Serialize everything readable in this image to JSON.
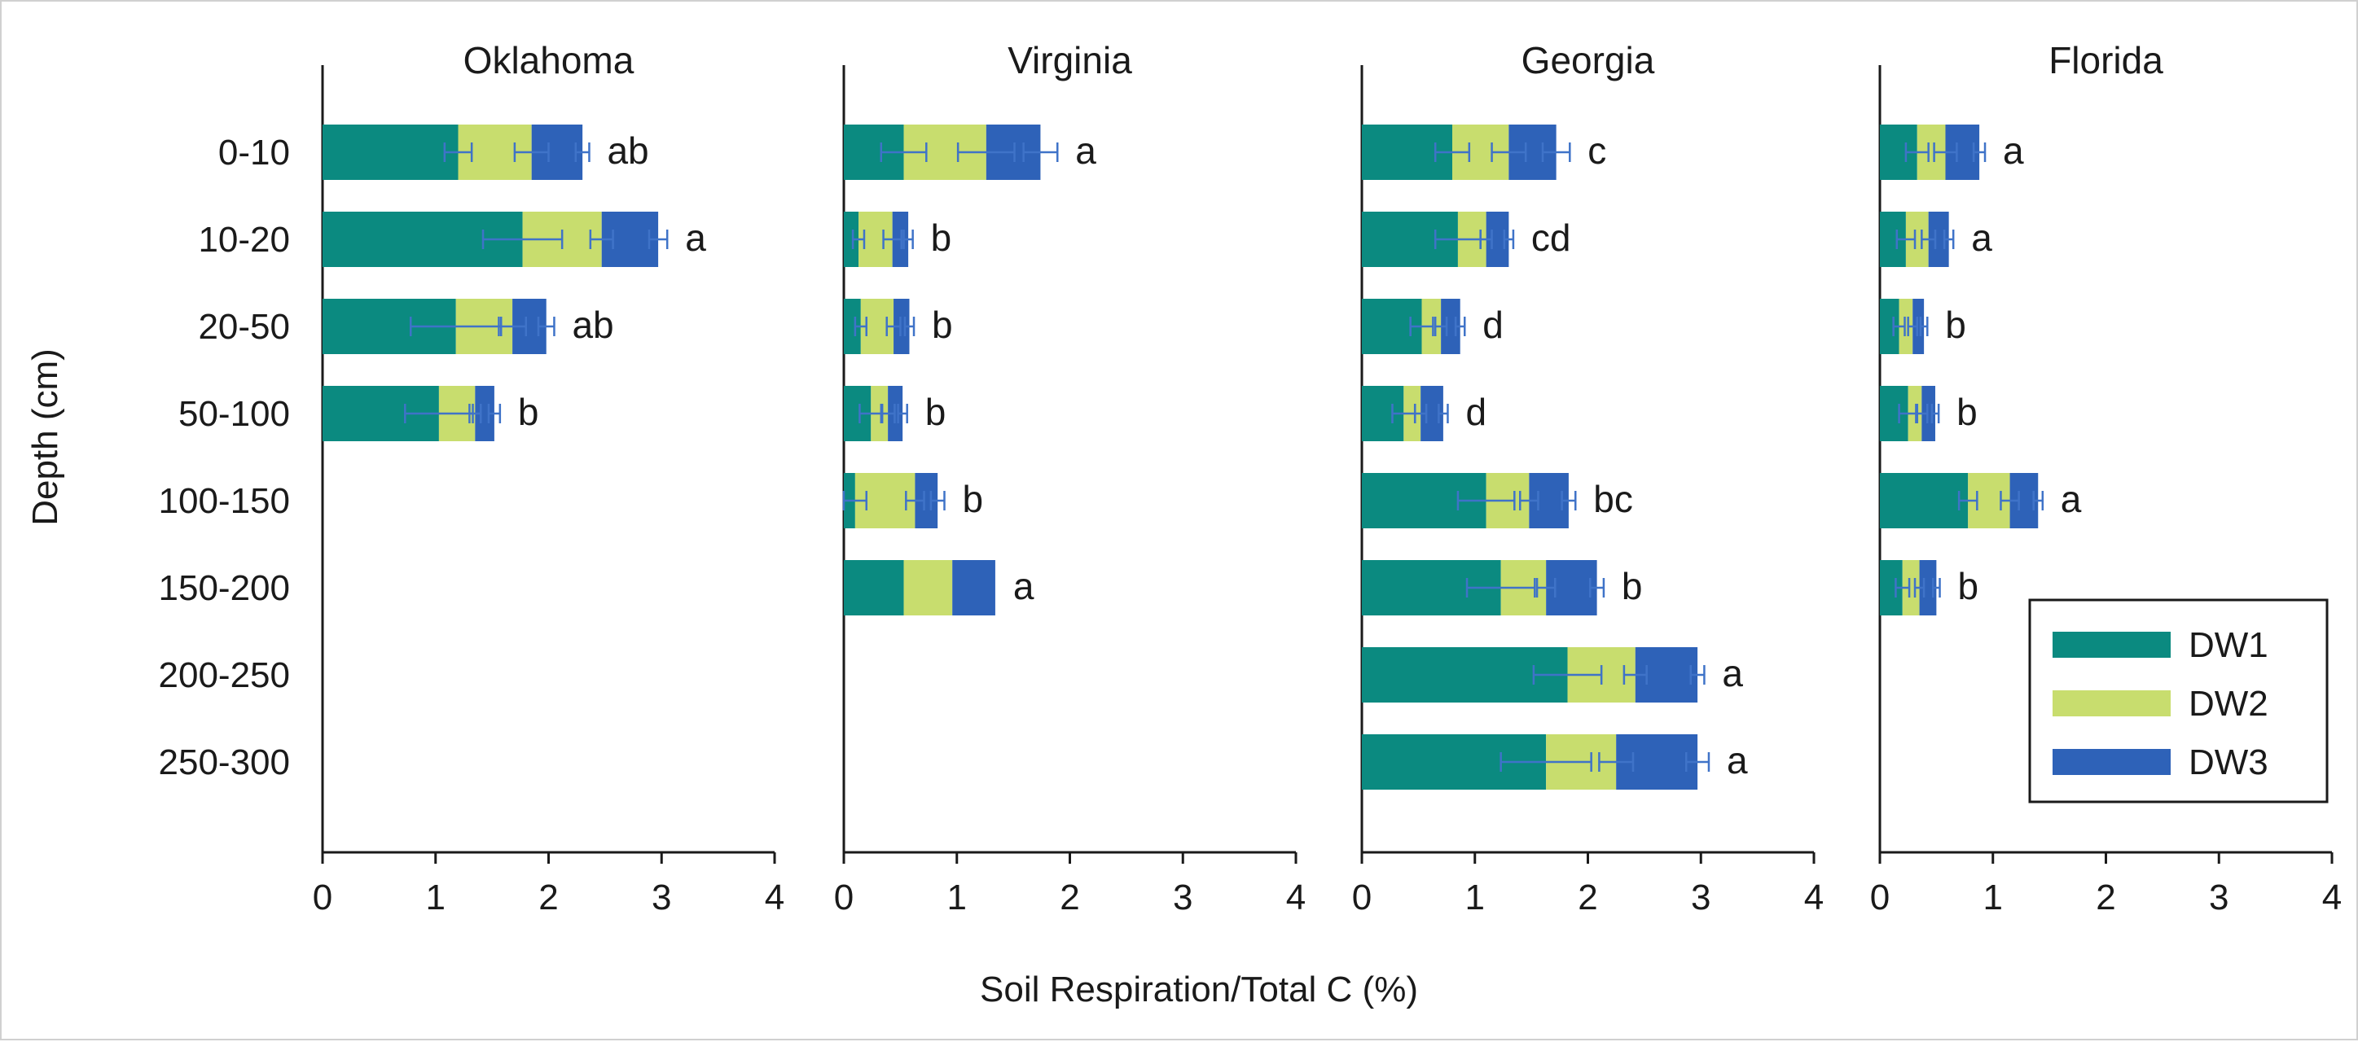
{
  "chart_data": {
    "type": "bar",
    "orientation": "horizontal",
    "stacked": true,
    "ylabel": "Depth (cm)",
    "xlabel": "Soil Respiration/Total C (%)",
    "xlim": [
      0,
      4
    ],
    "xticks": [
      "0",
      "1",
      "2",
      "3",
      "4"
    ],
    "categories": [
      "0-10",
      "10-20",
      "20-50",
      "50-100",
      "100-150",
      "150-200",
      "200-250",
      "250-300"
    ],
    "legend": {
      "position": "bottom-right",
      "entries": [
        {
          "name": "DW1",
          "color": "#0b8a80"
        },
        {
          "name": "DW2",
          "color": "#c8dd6e"
        },
        {
          "name": "DW3",
          "color": "#2e62b8"
        }
      ]
    },
    "colors": {
      "DW1": "#0b8a80",
      "DW2": "#c8dd6e",
      "DW3": "#2e62b8",
      "errorbar": "#3f73c8",
      "axis": "#1a1a1a"
    },
    "panels": [
      {
        "title": "Oklahoma",
        "rows": [
          {
            "depth": "0-10",
            "DW1": 1.2,
            "DW2": 0.65,
            "DW3": 0.45,
            "err": [
              0.12,
              0.15,
              0.06
            ],
            "letter": "ab"
          },
          {
            "depth": "10-20",
            "DW1": 1.77,
            "DW2": 0.7,
            "DW3": 0.5,
            "err": [
              0.35,
              0.1,
              0.08
            ],
            "letter": "a"
          },
          {
            "depth": "20-50",
            "DW1": 1.18,
            "DW2": 0.5,
            "DW3": 0.3,
            "err": [
              0.4,
              0.12,
              0.07
            ],
            "letter": "ab"
          },
          {
            "depth": "50-100",
            "DW1": 1.03,
            "DW2": 0.32,
            "DW3": 0.17,
            "err": [
              0.3,
              0.05,
              0.05
            ],
            "letter": "b"
          }
        ]
      },
      {
        "title": "Virginia",
        "rows": [
          {
            "depth": "0-10",
            "DW1": 0.53,
            "DW2": 0.73,
            "DW3": 0.48,
            "err": [
              0.2,
              0.25,
              0.15
            ],
            "letter": "a"
          },
          {
            "depth": "10-20",
            "DW1": 0.13,
            "DW2": 0.3,
            "DW3": 0.14,
            "err": [
              0.05,
              0.08,
              0.04
            ],
            "letter": "b"
          },
          {
            "depth": "20-50",
            "DW1": 0.15,
            "DW2": 0.29,
            "DW3": 0.14,
            "err": [
              0.05,
              0.06,
              0.04
            ],
            "letter": "b"
          },
          {
            "depth": "50-100",
            "DW1": 0.24,
            "DW2": 0.15,
            "DW3": 0.13,
            "err": [
              0.1,
              0.06,
              0.04
            ],
            "letter": "b"
          },
          {
            "depth": "100-150",
            "DW1": 0.1,
            "DW2": 0.53,
            "DW3": 0.2,
            "err": [
              0.1,
              0.08,
              0.06
            ],
            "letter": "b"
          },
          {
            "depth": "150-200",
            "DW1": 0.53,
            "DW2": 0.43,
            "DW3": 0.38,
            "err": [
              0,
              0,
              0
            ],
            "letter": "a"
          }
        ]
      },
      {
        "title": "Georgia",
        "rows": [
          {
            "depth": "0-10",
            "DW1": 0.8,
            "DW2": 0.5,
            "DW3": 0.42,
            "err": [
              0.15,
              0.15,
              0.12
            ],
            "letter": "c"
          },
          {
            "depth": "10-20",
            "DW1": 0.85,
            "DW2": 0.25,
            "DW3": 0.2,
            "err": [
              0.2,
              0.05,
              0.04
            ],
            "letter": "cd"
          },
          {
            "depth": "20-50",
            "DW1": 0.53,
            "DW2": 0.17,
            "DW3": 0.17,
            "err": [
              0.1,
              0.05,
              0.04
            ],
            "letter": "d"
          },
          {
            "depth": "50-100",
            "DW1": 0.37,
            "DW2": 0.15,
            "DW3": 0.2,
            "err": [
              0.1,
              0.05,
              0.04
            ],
            "letter": "d"
          },
          {
            "depth": "100-150",
            "DW1": 1.1,
            "DW2": 0.38,
            "DW3": 0.35,
            "err": [
              0.25,
              0.08,
              0.06
            ],
            "letter": "bc"
          },
          {
            "depth": "150-200",
            "DW1": 1.23,
            "DW2": 0.4,
            "DW3": 0.45,
            "err": [
              0.3,
              0.08,
              0.06
            ],
            "letter": "b"
          },
          {
            "depth": "200-250",
            "DW1": 1.82,
            "DW2": 0.6,
            "DW3": 0.55,
            "err": [
              0.3,
              0.1,
              0.06
            ],
            "letter": "a"
          },
          {
            "depth": "250-300",
            "DW1": 1.63,
            "DW2": 0.62,
            "DW3": 0.72,
            "err": [
              0.4,
              0.15,
              0.1
            ],
            "letter": "a"
          }
        ]
      },
      {
        "title": "Florida",
        "rows": [
          {
            "depth": "0-10",
            "DW1": 0.33,
            "DW2": 0.25,
            "DW3": 0.3,
            "err": [
              0.1,
              0.1,
              0.05
            ],
            "letter": "a"
          },
          {
            "depth": "10-20",
            "DW1": 0.23,
            "DW2": 0.2,
            "DW3": 0.18,
            "err": [
              0.08,
              0.06,
              0.04
            ],
            "letter": "a"
          },
          {
            "depth": "20-50",
            "DW1": 0.17,
            "DW2": 0.12,
            "DW3": 0.1,
            "err": [
              0.05,
              0.04,
              0.03
            ],
            "letter": "b"
          },
          {
            "depth": "50-100",
            "DW1": 0.25,
            "DW2": 0.12,
            "DW3": 0.12,
            "err": [
              0.08,
              0.05,
              0.03
            ],
            "letter": "b"
          },
          {
            "depth": "100-150",
            "DW1": 0.78,
            "DW2": 0.37,
            "DW3": 0.25,
            "err": [
              0.08,
              0.08,
              0.04
            ],
            "letter": "a"
          },
          {
            "depth": "150-200",
            "DW1": 0.2,
            "DW2": 0.15,
            "DW3": 0.15,
            "err": [
              0.06,
              0.04,
              0.03
            ],
            "letter": "b"
          }
        ]
      }
    ]
  }
}
